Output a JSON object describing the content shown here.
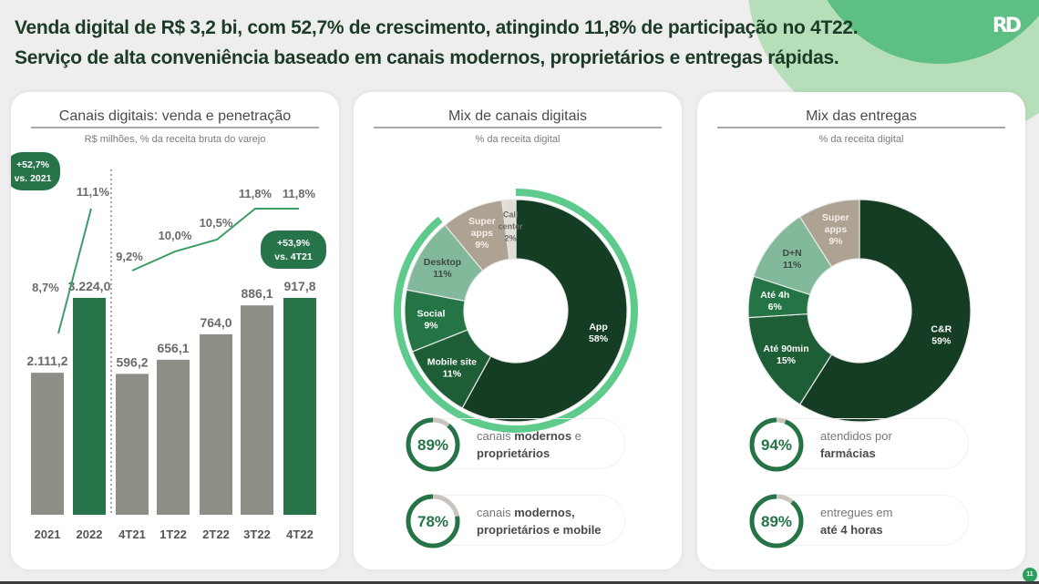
{
  "headline": {
    "line1": "Venda digital de R$ 3,2 bi, com 52,7% de crescimento, atingindo 11,8% de participação no 4T22.",
    "line2": "Serviço de alta conveniência baseado em canais modernos, proprietários e entregas rápidas."
  },
  "logo": "RD",
  "page_number": "11",
  "colors": {
    "dark_green": "#143d24",
    "mid_green": "#1e5e36",
    "green": "#247446",
    "light_green": "#82b99a",
    "accent_ring": "#5ecb8c",
    "taupe": "#aea292",
    "gray_bar": "#8e8e86",
    "bar_green": "#27744a"
  },
  "chart_data": [
    {
      "type": "bar",
      "title": "Canais digitais: venda e penetração",
      "subtitle": "R$ milhões, % da receita bruta do varejo",
      "categories": [
        "2021",
        "2022",
        "4T21",
        "1T22",
        "2T22",
        "3T22",
        "4T22"
      ],
      "values": [
        2111.2,
        3224.0,
        596.2,
        656.1,
        764.0,
        886.1,
        917.8
      ],
      "value_labels": [
        "2.111,2",
        "3.224,0",
        "596,2",
        "656,1",
        "764,0",
        "886,1",
        "917,8"
      ],
      "highlight": [
        false,
        true,
        false,
        false,
        false,
        false,
        true
      ],
      "annual_ylim": [
        0,
        3224.0
      ],
      "quarterly_ylim": [
        0,
        917.8
      ],
      "penetration": {
        "annual": {
          "x": [
            "2021",
            "2022"
          ],
          "values": [
            8.7,
            11.1
          ],
          "labels": [
            "8,7%",
            "11,1%"
          ]
        },
        "quarterly": {
          "x": [
            "4T21",
            "1T22",
            "2T22",
            "3T22",
            "4T22"
          ],
          "values": [
            9.2,
            10.0,
            10.5,
            11.8,
            11.8
          ],
          "labels": [
            "9,2%",
            "10,0%",
            "10,5%",
            "11,8%",
            "11,8%"
          ]
        }
      },
      "annotations": [
        {
          "line1": "+52,7%",
          "line2": "vs. 2021"
        },
        {
          "line1": "+53,9%",
          "line2": "vs. 4T21"
        }
      ]
    },
    {
      "type": "pie",
      "title": "Mix de canais digitais",
      "subtitle": "% da receita digital",
      "slices": [
        {
          "label": "App",
          "value": 58
        },
        {
          "label": "Mobile site",
          "value": 11
        },
        {
          "label": "Social",
          "value": 9
        },
        {
          "label": "Desktop",
          "value": 11
        },
        {
          "label": "Super apps",
          "value": 9
        },
        {
          "label": "Call center",
          "value": 2
        }
      ],
      "outer_ring_value": 89
    },
    {
      "type": "pie",
      "title": "Mix das entregas",
      "subtitle": "% da receita digital",
      "slices": [
        {
          "label": "C&R",
          "value": 59
        },
        {
          "label": "Até 90min",
          "value": 15
        },
        {
          "label": "Até 4h",
          "value": 6
        },
        {
          "label": "D+N",
          "value": 11
        },
        {
          "label": "Super apps",
          "value": 9
        }
      ]
    }
  ],
  "kpis_channels": [
    {
      "value": 89,
      "label": "89%",
      "text_plain": "canais ",
      "text_bold1": "modernos",
      "text_plain2": " e",
      "text_line2": "proprietários"
    },
    {
      "value": 78,
      "label": "78%",
      "text_plain": "canais ",
      "text_bold1": "modernos,",
      "text_plain2": "",
      "text_line2": "proprietários e mobile"
    }
  ],
  "kpis_delivery": [
    {
      "value": 94,
      "label": "94%",
      "text_plain": "atendidos por",
      "text_bold1": "",
      "text_plain2": "",
      "text_line2": "farmácias"
    },
    {
      "value": 89,
      "label": "89%",
      "text_plain": "entregues em",
      "text_bold1": "",
      "text_plain2": "",
      "text_line2": "até 4 horas"
    }
  ]
}
